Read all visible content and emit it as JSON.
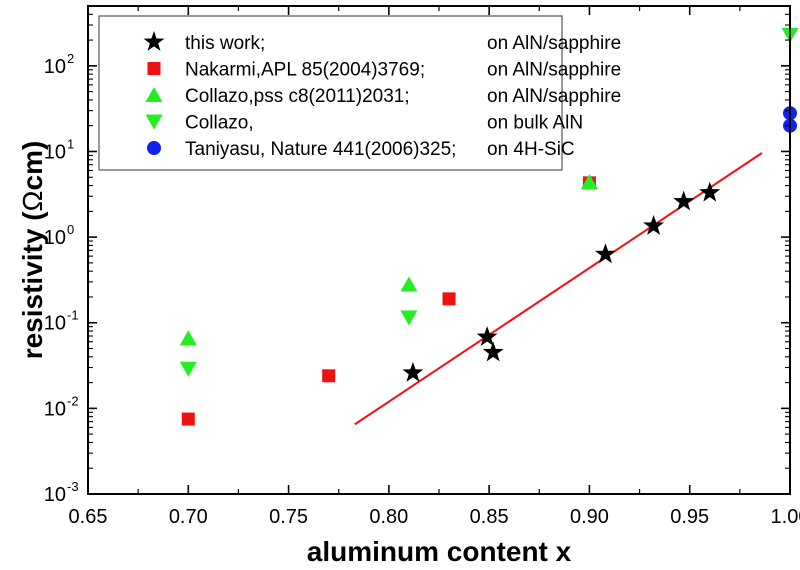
{
  "chart_data": {
    "type": "scatter",
    "xlabel": "aluminum content x",
    "ylabel": "resistivity (Ωcm)",
    "ylabel_parts": {
      "pre": "resistivity (",
      "omega": "Ω",
      "post": "cm)"
    },
    "xlim": [
      0.65,
      1.0
    ],
    "ylim": [
      0.001,
      500
    ],
    "yscale": "log",
    "x_ticks": [
      0.65,
      0.7,
      0.75,
      0.8,
      0.85,
      0.9,
      0.95,
      1.0
    ],
    "x_tick_labels": [
      "0.65",
      "0.70",
      "0.75",
      "0.80",
      "0.85",
      "0.90",
      "0.95",
      "1.00"
    ],
    "y_ticks": [
      {
        "value": 0.001,
        "base": "10",
        "exp": "-3"
      },
      {
        "value": 0.01,
        "base": "10",
        "exp": "-2"
      },
      {
        "value": 0.1,
        "base": "10",
        "exp": "-1"
      },
      {
        "value": 1,
        "base": "10",
        "exp": "0"
      },
      {
        "value": 10,
        "base": "10",
        "exp": "1"
      },
      {
        "value": 100,
        "base": "10",
        "exp": "2"
      }
    ],
    "grid": false,
    "legend_position": "top-left",
    "series": [
      {
        "name": "this work;",
        "substrate": "on AlN/sapphire",
        "marker": "star",
        "color": "#000000",
        "x": [
          0.812,
          0.849,
          0.852,
          0.908,
          0.932,
          0.947,
          0.96
        ],
        "y": [
          0.026,
          0.068,
          0.045,
          0.63,
          1.35,
          2.6,
          3.3
        ]
      },
      {
        "name": "Nakarmi,APL 85(2004)3769;",
        "substrate": "on AlN/sapphire",
        "marker": "square",
        "color": "#ee1111",
        "x": [
          0.7,
          0.77,
          0.83,
          0.9
        ],
        "y": [
          0.0075,
          0.024,
          0.19,
          4.3
        ]
      },
      {
        "name": "Collazo,pss c8(2011)2031;",
        "substrate": "on AlN/sapphire",
        "marker": "triangle-up",
        "color": "#22ee22",
        "x": [
          0.7,
          0.81,
          0.9
        ],
        "y": [
          0.066,
          0.28,
          4.4
        ]
      },
      {
        "name": "Collazo,",
        "substrate": "on bulk AlN",
        "marker": "triangle-down",
        "color": "#22ee22",
        "x": [
          0.7,
          0.81,
          1.0
        ],
        "y": [
          0.029,
          0.115,
          230
        ]
      },
      {
        "name": "Taniyasu, Nature 441(2006)325;",
        "substrate": "on 4H-SiC",
        "marker": "circle",
        "color": "#1122ee",
        "x": [
          1.0,
          1.0
        ],
        "y": [
          28,
          20
        ]
      }
    ],
    "fit_line": {
      "color": "#ee1111",
      "x": [
        0.783,
        0.986
      ],
      "y": [
        0.0065,
        9.6
      ]
    }
  }
}
